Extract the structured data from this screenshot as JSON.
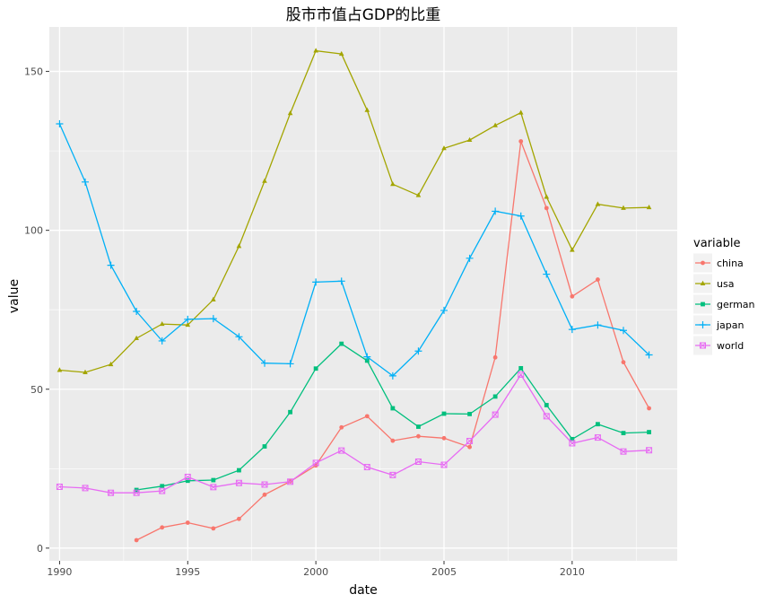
{
  "chart_data": {
    "type": "line",
    "title": "股市市值占GDP的比重",
    "xlabel": "date",
    "ylabel": "value",
    "xlim": [
      1989.6,
      2014.1
    ],
    "ylim": [
      -4,
      164
    ],
    "x_ticks": [
      1990,
      1995,
      2000,
      2005,
      2010
    ],
    "y_ticks": [
      0,
      50,
      100,
      150
    ],
    "x_minor_ticks": [
      1992.5,
      1997.5,
      2002.5,
      2007.5,
      2012.5
    ],
    "y_minor_ticks": [
      25,
      75,
      125
    ],
    "grid": true,
    "legend": {
      "title": "variable",
      "position": "right"
    },
    "series": [
      {
        "name": "china",
        "color": "#F8766D",
        "marker": "circle",
        "x": [
          1993,
          1994,
          1995,
          1996,
          1997,
          1998,
          1999,
          2000,
          2001,
          2002,
          2003,
          2004,
          2005,
          2006,
          2007,
          2008,
          2009,
          2010,
          2011,
          2012,
          2013
        ],
        "values": [
          2.5,
          6.5,
          8,
          6.2,
          9.2,
          16.8,
          21,
          26,
          38,
          41.5,
          33.8,
          35.2,
          34.6,
          31.8,
          60,
          128,
          107,
          79.2,
          84.5,
          58.5,
          44
        ]
      },
      {
        "name": "usa",
        "color": "#A3A500",
        "marker": "triangle",
        "x": [
          1990,
          1991,
          1992,
          1993,
          1994,
          1995,
          1996,
          1997,
          1998,
          1999,
          2000,
          2001,
          2002,
          2003,
          2004,
          2005,
          2006,
          2007,
          2008,
          2009,
          2010,
          2011,
          2012,
          2013
        ],
        "values": [
          56,
          55.3,
          57.8,
          66,
          70.5,
          70.2,
          78.2,
          95,
          115.5,
          136.8,
          156.5,
          155.5,
          137.8,
          114.5,
          111,
          125.8,
          128.4,
          133,
          137,
          110.5,
          93.8,
          108.2,
          107,
          107.2
        ]
      },
      {
        "name": "german",
        "color": "#00BF7D",
        "marker": "square",
        "x": [
          1993,
          1994,
          1995,
          1996,
          1997,
          1998,
          1999,
          2000,
          2001,
          2002,
          2003,
          2004,
          2005,
          2006,
          2007,
          2008,
          2009,
          2010,
          2011,
          2012,
          2013
        ],
        "values": [
          18.3,
          19.5,
          21.2,
          21.4,
          24.5,
          32,
          42.8,
          56.5,
          64.3,
          59,
          44,
          38.2,
          42.3,
          42.2,
          47.7,
          56.6,
          45,
          34.3,
          39,
          36.2,
          36.5
        ]
      },
      {
        "name": "japan",
        "color": "#00B0F6",
        "marker": "plus",
        "x": [
          1990,
          1991,
          1992,
          1993,
          1994,
          1995,
          1996,
          1997,
          1998,
          1999,
          2000,
          2001,
          2002,
          2003,
          2004,
          2005,
          2006,
          2007,
          2008,
          2009,
          2010,
          2011,
          2012,
          2013
        ],
        "values": [
          133.5,
          115.2,
          89,
          74.5,
          65.2,
          72,
          72.2,
          66.5,
          58.2,
          58,
          83.7,
          84,
          60.2,
          54.2,
          62,
          74.8,
          91.2,
          106,
          104.5,
          86.2,
          68.8,
          70.2,
          68.5,
          60.8
        ]
      },
      {
        "name": "world",
        "color": "#E76BF3",
        "marker": "square-cross",
        "x": [
          1990,
          1991,
          1992,
          1993,
          1994,
          1995,
          1996,
          1997,
          1998,
          1999,
          2000,
          2001,
          2002,
          2003,
          2004,
          2005,
          2006,
          2007,
          2008,
          2009,
          2010,
          2011,
          2012,
          2013
        ],
        "values": [
          19.3,
          18.9,
          17.4,
          17.4,
          18,
          22.4,
          19.2,
          20.5,
          20,
          20.9,
          26.8,
          30.7,
          25.5,
          23,
          27.2,
          26.2,
          33.7,
          42,
          54.6,
          41.5,
          33,
          34.8,
          30.4,
          30.8
        ]
      }
    ]
  }
}
